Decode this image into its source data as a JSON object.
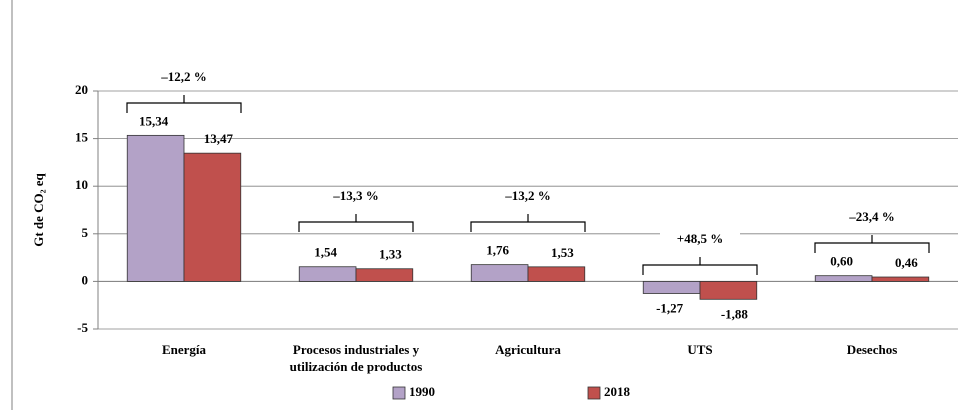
{
  "chart_data": {
    "type": "bar",
    "y_label": "Gt de CO₂ eq",
    "categories": [
      "Energía",
      "Procesos industriales y utilización de productos",
      "Agricultura",
      "UTS",
      "Desechos"
    ],
    "series": [
      {
        "name": "1990",
        "color": "#b3a2c7",
        "values": [
          15.34,
          1.54,
          1.76,
          -1.27,
          0.6
        ],
        "value_labels": [
          "15,34",
          "1,54",
          "1,76",
          "-1,27",
          "0,60"
        ]
      },
      {
        "name": "2018",
        "color": "#c0504d",
        "values": [
          13.47,
          1.33,
          1.53,
          -1.88,
          0.46
        ],
        "value_labels": [
          "13,47",
          "1,33",
          "1,53",
          "-1,88",
          "0,46"
        ]
      }
    ],
    "annotations": [
      "–12,2 %",
      "–13,3 %",
      "–13,2 %",
      "+48,5 %",
      "–23,4 %"
    ],
    "ylim": [
      -5,
      20
    ],
    "yticks": [
      -5,
      0,
      5,
      10,
      15,
      20
    ],
    "grid": true,
    "legend": "bottom"
  }
}
